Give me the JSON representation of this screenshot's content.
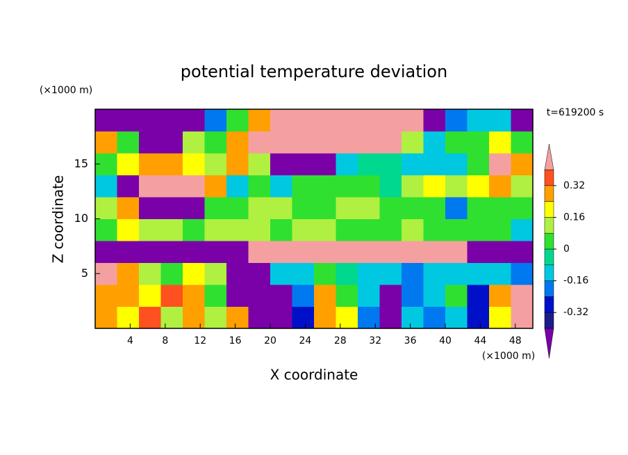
{
  "chart_data": {
    "type": "heatmap",
    "title": "potential temperature deviation",
    "x_label": "X coordinate",
    "y_label": "Z coordinate",
    "x_unit": "(×1000 m)",
    "y_unit": "(×1000 m)",
    "annotation": "t=619200 s",
    "xlim": [
      0,
      50
    ],
    "ylim": [
      0,
      20
    ],
    "xticks": [
      4,
      8,
      12,
      16,
      20,
      24,
      28,
      32,
      36,
      40,
      44,
      48
    ],
    "yticks": [
      5,
      10,
      15
    ],
    "x": [
      1.25,
      3.75,
      6.25,
      8.75,
      11.25,
      13.75,
      16.25,
      18.75,
      21.25,
      23.75,
      26.25,
      28.75,
      31.25,
      33.75,
      36.25,
      38.75,
      41.25,
      43.75,
      46.25,
      48.75
    ],
    "y": [
      1,
      3,
      5,
      7,
      9,
      11,
      13,
      15,
      17,
      19
    ],
    "values": [
      [
        0.3,
        0.2,
        0.35,
        0.1,
        0.25,
        0.1,
        0.3,
        -0.5,
        -0.5,
        -0.3,
        0.3,
        0.2,
        -0.2,
        -0.5,
        -0.1,
        -0.2,
        -0.1,
        -0.3,
        0.2,
        0.45
      ],
      [
        0.3,
        0.25,
        0.2,
        0.35,
        0.3,
        0.0,
        -0.5,
        -0.5,
        -0.5,
        -0.2,
        0.25,
        0.0,
        -0.1,
        -0.5,
        -0.2,
        -0.1,
        0.05,
        -0.3,
        0.3,
        0.45
      ],
      [
        0.45,
        0.3,
        0.1,
        0.05,
        0.2,
        0.1,
        -0.5,
        -0.5,
        -0.1,
        -0.1,
        0.0,
        -0.05,
        -0.15,
        -0.1,
        -0.2,
        -0.15,
        -0.1,
        -0.15,
        -0.1,
        -0.2
      ],
      [
        -0.5,
        -0.5,
        -0.5,
        -0.5,
        -0.5,
        -0.5,
        -0.5,
        0.45,
        0.45,
        0.45,
        0.45,
        0.45,
        0.45,
        0.45,
        0.45,
        0.45,
        0.45,
        -0.5,
        -0.45,
        -0.5
      ],
      [
        0.05,
        0.2,
        0.1,
        0.15,
        0.05,
        0.1,
        0.1,
        0.1,
        0.05,
        0.1,
        0.1,
        0.05,
        0.0,
        0.05,
        0.1,
        0.05,
        0.0,
        0.05,
        0.0,
        -0.1
      ],
      [
        0.1,
        0.3,
        -0.5,
        -0.5,
        -0.45,
        0.0,
        0.05,
        0.1,
        0.1,
        0.0,
        0.05,
        0.1,
        0.1,
        0.05,
        0.0,
        0.05,
        -0.2,
        0.0,
        0.05,
        0.0
      ],
      [
        -0.1,
        -0.5,
        0.45,
        0.45,
        0.45,
        0.3,
        -0.1,
        0.0,
        -0.1,
        0.0,
        0.05,
        0.0,
        0.0,
        -0.05,
        0.1,
        0.2,
        0.1,
        0.2,
        0.3,
        0.1
      ],
      [
        0.0,
        0.2,
        0.3,
        0.25,
        0.2,
        0.1,
        0.25,
        0.1,
        -0.5,
        -0.5,
        -0.5,
        -0.1,
        -0.05,
        -0.05,
        -0.1,
        -0.1,
        -0.1,
        0.0,
        0.45,
        0.3
      ],
      [
        0.3,
        0.0,
        -0.5,
        -0.5,
        0.1,
        0.0,
        0.3,
        0.45,
        0.45,
        0.45,
        0.45,
        0.45,
        0.45,
        0.4,
        0.1,
        -0.1,
        0.0,
        0.05,
        0.2,
        0.0
      ],
      [
        -0.5,
        -0.5,
        -0.5,
        -0.5,
        -0.5,
        -0.2,
        0.05,
        0.3,
        0.45,
        0.45,
        0.45,
        0.45,
        0.45,
        0.45,
        0.45,
        -0.5,
        -0.2,
        -0.1,
        -0.1,
        -0.5
      ]
    ],
    "levels": [
      -0.4,
      -0.32,
      -0.24,
      -0.16,
      -0.08,
      0,
      0.08,
      0.16,
      0.24,
      0.32,
      0.4
    ],
    "colors": [
      "#7a00a8",
      "#1c1c8c",
      "#0010c8",
      "#0078f0",
      "#00c8e0",
      "#00d890",
      "#30e030",
      "#b0f040",
      "#ffff00",
      "#ffa000",
      "#ff5020",
      "#f4a0a0"
    ],
    "colorbar_ticks": [
      0.32,
      0.16,
      0,
      -0.16,
      -0.32
    ]
  }
}
